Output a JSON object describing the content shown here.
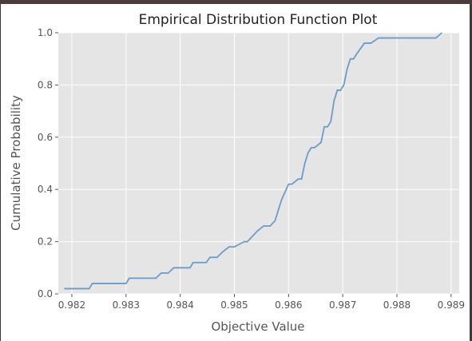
{
  "chart_data": {
    "type": "line",
    "title": "Empirical Distribution Function Plot",
    "xlabel": "Objective Value",
    "ylabel": "Cumulative Probability",
    "xlim": [
      0.98175,
      0.98915
    ],
    "ylim": [
      0.0,
      1.0
    ],
    "x_ticks": [
      "0.982",
      "0.983",
      "0.984",
      "0.985",
      "0.986",
      "0.987",
      "0.988",
      "0.989"
    ],
    "x_tick_values": [
      0.982,
      0.983,
      0.984,
      0.985,
      0.986,
      0.987,
      0.988,
      0.989
    ],
    "y_ticks": [
      "0.0",
      "0.2",
      "0.4",
      "0.6",
      "0.8",
      "1.0"
    ],
    "y_tick_values": [
      0.0,
      0.2,
      0.4,
      0.6,
      0.8,
      1.0
    ],
    "grid": true,
    "background_color": "#e5e5e5",
    "line_color": "#6a9cc9",
    "series": [
      {
        "x": [
          0.98186,
          0.98232,
          0.98238,
          0.983,
          0.98306,
          0.98355,
          0.98365,
          0.98378,
          0.98388,
          0.984,
          0.98418,
          0.98424,
          0.98448,
          0.98455,
          0.98468,
          0.98478,
          0.9849,
          0.985,
          0.98518,
          0.98524,
          0.98542,
          0.98554,
          0.98566,
          0.98575,
          0.98587,
          0.986,
          0.98606,
          0.98618,
          0.98624,
          0.9863,
          0.98636,
          0.98642,
          0.98648,
          0.9866,
          0.98666,
          0.98672,
          0.98678,
          0.98684,
          0.9869,
          0.98696,
          0.98702,
          0.98708,
          0.98714,
          0.9872,
          0.98726,
          0.9874,
          0.98752,
          0.98766,
          0.98775,
          0.9879,
          0.988,
          0.9882,
          0.98872,
          0.98883
        ],
        "y": [
          0.02,
          0.02,
          0.04,
          0.04,
          0.06,
          0.06,
          0.08,
          0.08,
          0.1,
          0.1,
          0.1,
          0.12,
          0.12,
          0.14,
          0.14,
          0.16,
          0.18,
          0.18,
          0.2,
          0.2,
          0.24,
          0.26,
          0.26,
          0.28,
          0.36,
          0.42,
          0.42,
          0.44,
          0.44,
          0.5,
          0.54,
          0.56,
          0.56,
          0.58,
          0.64,
          0.64,
          0.66,
          0.74,
          0.78,
          0.78,
          0.8,
          0.86,
          0.9,
          0.9,
          0.92,
          0.96,
          0.96,
          0.98,
          0.98,
          0.98,
          0.98,
          0.98,
          0.98,
          1.0
        ]
      }
    ]
  }
}
